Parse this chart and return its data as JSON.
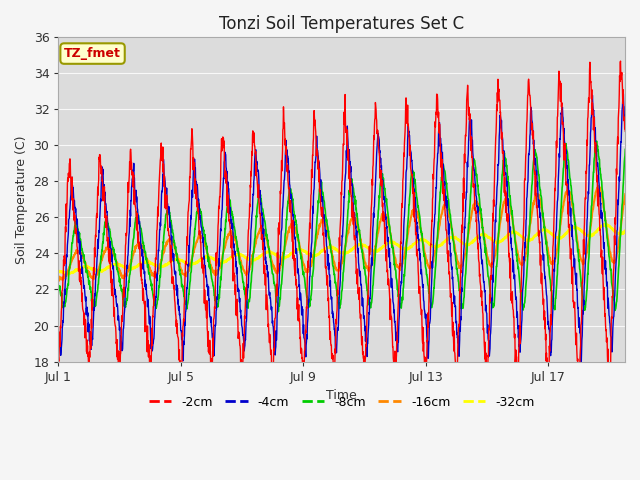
{
  "title": "Tonzi Soil Temperatures Set C",
  "xlabel": "Time",
  "ylabel": "Soil Temperature (C)",
  "ylim": [
    18,
    36
  ],
  "xlim_days": 18.5,
  "annotation": "TZ_fmet",
  "legend_labels": [
    "-2cm",
    "-4cm",
    "-8cm",
    "-16cm",
    "-32cm"
  ],
  "line_colors": [
    "#ff0000",
    "#0000cc",
    "#00cc00",
    "#ff8800",
    "#ffff00"
  ],
  "line_widths": [
    1.0,
    1.0,
    1.2,
    1.5,
    1.8
  ],
  "x_tick_labels": [
    "Jul 1",
    "Jul 5",
    "Jul 9",
    "Jul 13",
    "Jul 17"
  ],
  "x_tick_positions": [
    0,
    4,
    8,
    12,
    16
  ],
  "background_color": "#f0f0f0",
  "plot_bg_color": "#e0e0e0",
  "grid_color": "#f8f8f8",
  "num_days": 19,
  "points_per_day": 96
}
